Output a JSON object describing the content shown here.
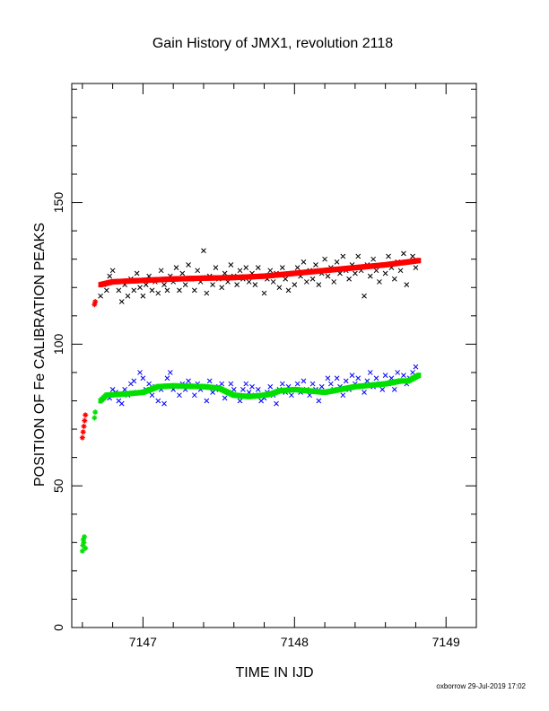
{
  "chart_data": {
    "type": "scatter",
    "title": "Gain History of JMX1, revolution 2118",
    "xlabel": "TIME IN IJD",
    "ylabel": "POSITION OF Fe CALIBRATION PEAKS",
    "xlim": [
      7146.53,
      7149.2
    ],
    "ylim": [
      0,
      192
    ],
    "x_ticks": [
      7147,
      7148,
      7149
    ],
    "y_ticks": [
      0,
      50,
      100,
      150
    ],
    "grid": false,
    "legend": "none",
    "footer": "oxborrow 29-Jul-2019 17:02",
    "series": [
      {
        "marker": "x",
        "color": "#000000",
        "values": [
          [
            7146.72,
            117
          ],
          [
            7146.74,
            121
          ],
          [
            7146.76,
            119
          ],
          [
            7146.78,
            124
          ],
          [
            7146.8,
            126
          ],
          [
            7146.82,
            122
          ],
          [
            7146.84,
            119
          ],
          [
            7146.86,
            115
          ],
          [
            7146.88,
            121
          ],
          [
            7146.9,
            117
          ],
          [
            7146.92,
            123
          ],
          [
            7146.94,
            119
          ],
          [
            7146.96,
            125
          ],
          [
            7146.98,
            120
          ],
          [
            7147.0,
            117
          ],
          [
            7147.02,
            121
          ],
          [
            7147.04,
            124
          ],
          [
            7147.06,
            119
          ],
          [
            7147.08,
            122
          ],
          [
            7147.1,
            118
          ],
          [
            7147.12,
            126
          ],
          [
            7147.14,
            121
          ],
          [
            7147.16,
            119
          ],
          [
            7147.18,
            124
          ],
          [
            7147.2,
            122
          ],
          [
            7147.22,
            127
          ],
          [
            7147.24,
            119
          ],
          [
            7147.26,
            125
          ],
          [
            7147.28,
            121
          ],
          [
            7147.3,
            128
          ],
          [
            7147.32,
            123
          ],
          [
            7147.34,
            119
          ],
          [
            7147.36,
            126
          ],
          [
            7147.38,
            122
          ],
          [
            7147.4,
            133
          ],
          [
            7147.42,
            118
          ],
          [
            7147.44,
            124
          ],
          [
            7147.46,
            121
          ],
          [
            7147.48,
            127
          ],
          [
            7147.5,
            123
          ],
          [
            7147.52,
            120
          ],
          [
            7147.54,
            125
          ],
          [
            7147.56,
            122
          ],
          [
            7147.58,
            128
          ],
          [
            7147.6,
            124
          ],
          [
            7147.62,
            121
          ],
          [
            7147.64,
            126
          ],
          [
            7147.66,
            123
          ],
          [
            7147.68,
            127
          ],
          [
            7147.7,
            122
          ],
          [
            7147.72,
            125
          ],
          [
            7147.74,
            121
          ],
          [
            7147.76,
            127
          ],
          [
            7147.78,
            124
          ],
          [
            7147.8,
            118
          ],
          [
            7147.82,
            123
          ],
          [
            7147.84,
            126
          ],
          [
            7147.86,
            122
          ],
          [
            7147.88,
            125
          ],
          [
            7147.9,
            120
          ],
          [
            7147.92,
            127
          ],
          [
            7147.94,
            123
          ],
          [
            7147.96,
            119
          ],
          [
            7147.98,
            125
          ],
          [
            7148.0,
            121
          ],
          [
            7148.02,
            127
          ],
          [
            7148.04,
            124
          ],
          [
            7148.06,
            129
          ],
          [
            7148.08,
            122
          ],
          [
            7148.1,
            126
          ],
          [
            7148.12,
            123
          ],
          [
            7148.14,
            128
          ],
          [
            7148.16,
            121
          ],
          [
            7148.18,
            125
          ],
          [
            7148.2,
            130
          ],
          [
            7148.22,
            124
          ],
          [
            7148.24,
            127
          ],
          [
            7148.26,
            122
          ],
          [
            7148.28,
            129
          ],
          [
            7148.3,
            125
          ],
          [
            7148.32,
            131
          ],
          [
            7148.34,
            126
          ],
          [
            7148.36,
            123
          ],
          [
            7148.38,
            128
          ],
          [
            7148.4,
            125
          ],
          [
            7148.42,
            131
          ],
          [
            7148.44,
            126
          ],
          [
            7148.46,
            117
          ],
          [
            7148.48,
            128
          ],
          [
            7148.5,
            124
          ],
          [
            7148.52,
            130
          ],
          [
            7148.54,
            126
          ],
          [
            7148.56,
            122
          ],
          [
            7148.58,
            128
          ],
          [
            7148.6,
            125
          ],
          [
            7148.62,
            131
          ],
          [
            7148.64,
            127
          ],
          [
            7148.66,
            123
          ],
          [
            7148.68,
            129
          ],
          [
            7148.7,
            126
          ],
          [
            7148.72,
            132
          ],
          [
            7148.74,
            121
          ],
          [
            7148.76,
            129
          ],
          [
            7148.78,
            131
          ],
          [
            7148.8,
            127
          ]
        ]
      },
      {
        "marker": "filled",
        "color": "#ff0000",
        "values": [
          [
            7146.6,
            67
          ],
          [
            7146.605,
            69
          ],
          [
            7146.61,
            71
          ],
          [
            7146.615,
            73
          ],
          [
            7146.62,
            75
          ],
          [
            7146.68,
            114
          ],
          [
            7146.685,
            115
          ]
        ]
      },
      {
        "marker": "filled",
        "color": "#ff0000",
        "curve": [
          [
            7146.72,
            121
          ],
          [
            7146.8,
            122
          ],
          [
            7147.0,
            122.5
          ],
          [
            7147.2,
            123
          ],
          [
            7147.4,
            123.3
          ],
          [
            7147.6,
            123.5
          ],
          [
            7147.8,
            124
          ],
          [
            7148.0,
            125
          ],
          [
            7148.2,
            126
          ],
          [
            7148.4,
            127
          ],
          [
            7148.6,
            128
          ],
          [
            7148.82,
            129.5
          ]
        ]
      },
      {
        "marker": "x",
        "color": "#0000ff",
        "values": [
          [
            7146.78,
            81
          ],
          [
            7146.8,
            84
          ],
          [
            7146.82,
            83
          ],
          [
            7146.84,
            80
          ],
          [
            7146.86,
            79
          ],
          [
            7146.88,
            84
          ],
          [
            7146.9,
            82
          ],
          [
            7146.92,
            86
          ],
          [
            7146.94,
            87
          ],
          [
            7146.96,
            83
          ],
          [
            7146.98,
            90
          ],
          [
            7147.0,
            88
          ],
          [
            7147.02,
            84
          ],
          [
            7147.04,
            86
          ],
          [
            7147.06,
            82
          ],
          [
            7147.08,
            85
          ],
          [
            7147.1,
            80
          ],
          [
            7147.12,
            84
          ],
          [
            7147.14,
            79
          ],
          [
            7147.16,
            88
          ],
          [
            7147.18,
            90
          ],
          [
            7147.2,
            84
          ],
          [
            7147.22,
            85
          ],
          [
            7147.24,
            82
          ],
          [
            7147.26,
            86
          ],
          [
            7147.28,
            84
          ],
          [
            7147.3,
            87
          ],
          [
            7147.32,
            85
          ],
          [
            7147.34,
            82
          ],
          [
            7147.36,
            86
          ],
          [
            7147.38,
            84
          ],
          [
            7147.4,
            85
          ],
          [
            7147.42,
            80
          ],
          [
            7147.44,
            87
          ],
          [
            7147.46,
            83
          ],
          [
            7147.48,
            84
          ],
          [
            7147.5,
            85
          ],
          [
            7147.52,
            86
          ],
          [
            7147.54,
            81
          ],
          [
            7147.56,
            83
          ],
          [
            7147.58,
            86
          ],
          [
            7147.6,
            84
          ],
          [
            7147.62,
            82
          ],
          [
            7147.64,
            80
          ],
          [
            7147.66,
            84
          ],
          [
            7147.68,
            86
          ],
          [
            7147.7,
            83
          ],
          [
            7147.72,
            85
          ],
          [
            7147.74,
            82
          ],
          [
            7147.76,
            84
          ],
          [
            7147.78,
            80
          ],
          [
            7147.8,
            81
          ],
          [
            7147.82,
            83
          ],
          [
            7147.84,
            85
          ],
          [
            7147.86,
            82
          ],
          [
            7147.88,
            79
          ],
          [
            7147.9,
            84
          ],
          [
            7147.92,
            86
          ],
          [
            7147.94,
            83
          ],
          [
            7147.96,
            85
          ],
          [
            7147.98,
            82
          ],
          [
            7148.0,
            84
          ],
          [
            7148.02,
            86
          ],
          [
            7148.04,
            83
          ],
          [
            7148.06,
            87
          ],
          [
            7148.08,
            84
          ],
          [
            7148.1,
            82
          ],
          [
            7148.12,
            86
          ],
          [
            7148.14,
            84
          ],
          [
            7148.16,
            80
          ],
          [
            7148.18,
            85
          ],
          [
            7148.2,
            83
          ],
          [
            7148.22,
            88
          ],
          [
            7148.24,
            86
          ],
          [
            7148.26,
            84
          ],
          [
            7148.28,
            88
          ],
          [
            7148.3,
            85
          ],
          [
            7148.32,
            82
          ],
          [
            7148.34,
            87
          ],
          [
            7148.36,
            84
          ],
          [
            7148.38,
            89
          ],
          [
            7148.4,
            86
          ],
          [
            7148.42,
            88
          ],
          [
            7148.44,
            85
          ],
          [
            7148.46,
            83
          ],
          [
            7148.48,
            87
          ],
          [
            7148.5,
            90
          ],
          [
            7148.52,
            85
          ],
          [
            7148.54,
            88
          ],
          [
            7148.56,
            86
          ],
          [
            7148.58,
            84
          ],
          [
            7148.6,
            89
          ],
          [
            7148.62,
            86
          ],
          [
            7148.64,
            88
          ],
          [
            7148.66,
            84
          ],
          [
            7148.68,
            90
          ],
          [
            7148.7,
            87
          ],
          [
            7148.72,
            89
          ],
          [
            7148.74,
            86
          ],
          [
            7148.76,
            88
          ],
          [
            7148.78,
            90
          ],
          [
            7148.8,
            92
          ]
        ]
      },
      {
        "marker": "filled",
        "color": "#00e000",
        "values": [
          [
            7146.6,
            27
          ],
          [
            7146.603,
            29
          ],
          [
            7146.606,
            31
          ],
          [
            7146.61,
            30
          ],
          [
            7146.613,
            32
          ],
          [
            7146.62,
            28
          ],
          [
            7146.68,
            74
          ],
          [
            7146.685,
            76
          ]
        ]
      },
      {
        "marker": "filled",
        "color": "#00e000",
        "curve": [
          [
            7146.72,
            80
          ],
          [
            7146.76,
            82
          ],
          [
            7146.9,
            82.5
          ],
          [
            7147.0,
            83
          ],
          [
            7147.1,
            85
          ],
          [
            7147.2,
            85.3
          ],
          [
            7147.4,
            85
          ],
          [
            7147.5,
            84.5
          ],
          [
            7147.6,
            82
          ],
          [
            7147.7,
            81.5
          ],
          [
            7147.8,
            82
          ],
          [
            7147.85,
            82.5
          ],
          [
            7147.9,
            83.5
          ],
          [
            7148.0,
            84
          ],
          [
            7148.1,
            83.5
          ],
          [
            7148.2,
            83
          ],
          [
            7148.3,
            84
          ],
          [
            7148.4,
            85
          ],
          [
            7148.5,
            85.5
          ],
          [
            7148.6,
            86
          ],
          [
            7148.7,
            87
          ],
          [
            7148.75,
            87
          ],
          [
            7148.82,
            89
          ]
        ]
      }
    ]
  }
}
